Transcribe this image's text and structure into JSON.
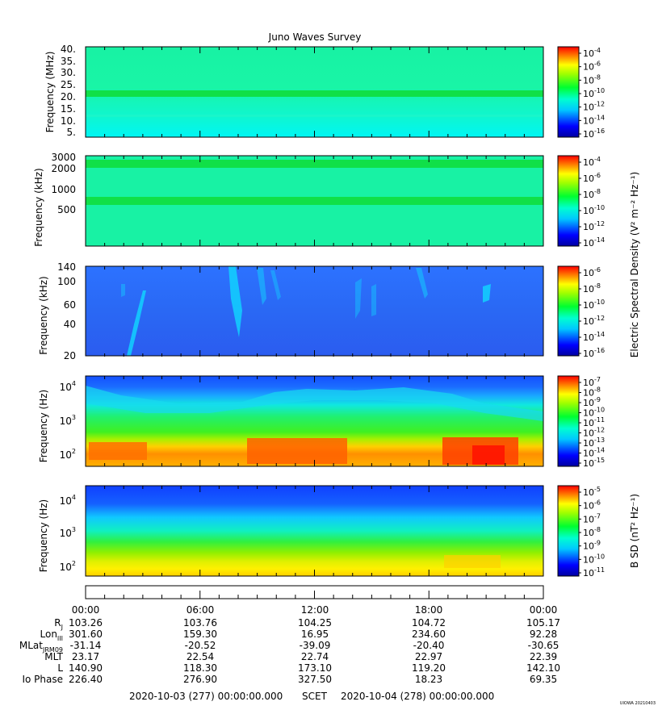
{
  "title": "Juno Waves Survey",
  "stamp": "UIOWA 20210403",
  "panels": [
    {
      "id": "p1",
      "ylabel": "Frequency (MHz)",
      "scale": "linear",
      "yticks": [
        "5.",
        "10.",
        "15.",
        "20.",
        "25.",
        "30.",
        "35.",
        "40."
      ],
      "cbar_ticks": [
        {
          "base": "10",
          "exp": "-4"
        },
        {
          "base": "10",
          "exp": "-6"
        },
        {
          "base": "10",
          "exp": "-8"
        },
        {
          "base": "10",
          "exp": "-10"
        },
        {
          "base": "10",
          "exp": "-12"
        },
        {
          "base": "10",
          "exp": "-14"
        },
        {
          "base": "10",
          "exp": "-16"
        }
      ]
    },
    {
      "id": "p2",
      "ylabel": "Frequency (kHz)",
      "scale": "log",
      "yticks": [
        "3000",
        "2000",
        "1000",
        "500"
      ],
      "cbar_ticks": [
        {
          "base": "10",
          "exp": "-4"
        },
        {
          "base": "10",
          "exp": "-6"
        },
        {
          "base": "10",
          "exp": "-8"
        },
        {
          "base": "10",
          "exp": "-10"
        },
        {
          "base": "10",
          "exp": "-12"
        },
        {
          "base": "10",
          "exp": "-14"
        }
      ]
    },
    {
      "id": "p3",
      "ylabel": "Frequency (kHz)",
      "scale": "log",
      "yticks": [
        "140",
        "100",
        "60",
        "40",
        "20"
      ],
      "cbar_ticks": [
        {
          "base": "10",
          "exp": "-6"
        },
        {
          "base": "10",
          "exp": "-8"
        },
        {
          "base": "10",
          "exp": "-10"
        },
        {
          "base": "10",
          "exp": "-12"
        },
        {
          "base": "10",
          "exp": "-14"
        },
        {
          "base": "10",
          "exp": "-16"
        }
      ]
    },
    {
      "id": "p4",
      "ylabel": "Frequency (Hz)",
      "scale": "log",
      "yticks": [
        {
          "base": "10",
          "exp": "4"
        },
        {
          "base": "10",
          "exp": "3"
        },
        {
          "base": "10",
          "exp": "2"
        }
      ],
      "cbar_ticks": [
        {
          "base": "10",
          "exp": "-7"
        },
        {
          "base": "10",
          "exp": "-8"
        },
        {
          "base": "10",
          "exp": "-9"
        },
        {
          "base": "10",
          "exp": "-10"
        },
        {
          "base": "10",
          "exp": "-11"
        },
        {
          "base": "10",
          "exp": "-12"
        },
        {
          "base": "10",
          "exp": "-13"
        },
        {
          "base": "10",
          "exp": "-14"
        },
        {
          "base": "10",
          "exp": "-15"
        }
      ]
    },
    {
      "id": "p5",
      "ylabel": "Frequency (Hz)",
      "scale": "log",
      "yticks": [
        {
          "base": "10",
          "exp": "4"
        },
        {
          "base": "10",
          "exp": "3"
        },
        {
          "base": "10",
          "exp": "2"
        }
      ],
      "cbar_ticks": [
        {
          "base": "10",
          "exp": "-5"
        },
        {
          "base": "10",
          "exp": "-6"
        },
        {
          "base": "10",
          "exp": "-7"
        },
        {
          "base": "10",
          "exp": "-8"
        },
        {
          "base": "10",
          "exp": "-9"
        },
        {
          "base": "10",
          "exp": "-10"
        },
        {
          "base": "10",
          "exp": "-11"
        }
      ]
    }
  ],
  "cbar_labels": {
    "electric": "Electric Spectral Density (V² m⁻² Hz⁻¹)",
    "magnetic": "B SD (nT² Hz⁻¹)"
  },
  "time_ticks": [
    "00:00",
    "06:00",
    "12:00",
    "18:00",
    "00:00"
  ],
  "ephemeris": [
    {
      "label": "R",
      "sub": "J",
      "values": [
        "103.26",
        "103.76",
        "104.25",
        "104.72",
        "105.17"
      ]
    },
    {
      "label": "Lon",
      "sub": "III",
      "values": [
        "301.60",
        "159.30",
        "16.95",
        "234.60",
        "92.28"
      ]
    },
    {
      "label": "MLat",
      "sub": "JRM09",
      "values": [
        "-31.14",
        "-20.52",
        "-39.09",
        "-20.40",
        "-30.65"
      ]
    },
    {
      "label": "MLT",
      "sub": "",
      "values": [
        "23.17",
        "22.54",
        "22.74",
        "22.97",
        "22.39"
      ]
    },
    {
      "label": "L",
      "sub": "",
      "values": [
        "140.90",
        "118.30",
        "173.10",
        "119.20",
        "142.10"
      ]
    },
    {
      "label": "Io Phase",
      "sub": "",
      "values": [
        "226.40",
        "276.90",
        "327.50",
        "18.23",
        "69.35"
      ]
    }
  ],
  "footer": {
    "start": "2020-10-03 (277) 00:00:00.000",
    "scet": "SCET",
    "end": "2020-10-04 (278) 00:00:00.000"
  },
  "chart_data": {
    "type": "heatmap",
    "title": "Juno Waves Survey",
    "x_axis": {
      "label": "SCET",
      "range": [
        "2020-10-03 00:00",
        "2020-10-04 00:00"
      ],
      "ticks": [
        "00:00",
        "06:00",
        "12:00",
        "18:00",
        "00:00"
      ]
    },
    "panels": [
      {
        "ylabel": "Frequency (MHz)",
        "yrange": [
          3,
          41
        ],
        "color_range_log10": [
          -16,
          -4
        ],
        "colorbar": "Electric Spectral Density (V² m⁻² Hz⁻¹)"
      },
      {
        "ylabel": "Frequency (kHz)",
        "yrange": [
          150,
          3000
        ],
        "scale": "log",
        "color_range_log10": [
          -15,
          -3
        ],
        "colorbar": "Electric Spectral Density (V² m⁻² Hz⁻¹)"
      },
      {
        "ylabel": "Frequency (kHz)",
        "yrange": [
          20,
          140
        ],
        "scale": "log",
        "color_range_log10": [
          -16,
          -6
        ],
        "colorbar": "Electric Spectral Density (V² m⁻² Hz⁻¹)"
      },
      {
        "ylabel": "Frequency (Hz)",
        "yrange": [
          50,
          20000
        ],
        "scale": "log",
        "color_range_log10": [
          -15,
          -7
        ],
        "colorbar": "Electric Spectral Density (V² m⁻² Hz⁻¹)"
      },
      {
        "ylabel": "Frequency (Hz)",
        "yrange": [
          50,
          20000
        ],
        "scale": "log",
        "color_range_log10": [
          -11,
          -4.7
        ],
        "colorbar": "B SD (nT² Hz⁻¹)"
      }
    ]
  }
}
